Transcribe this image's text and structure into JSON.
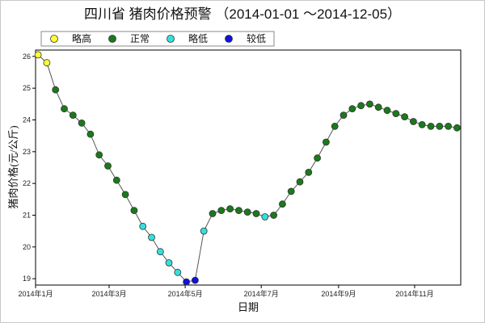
{
  "chart_data": {
    "type": "line",
    "title": "四川省 猪肉价格预警 （2014-01-01 ～2014-12-05）",
    "xlabel": "日期",
    "ylabel": "猪肉价格(元/公斤)",
    "ylim": [
      18.8,
      26.2
    ],
    "yticks": [
      19,
      20,
      21,
      22,
      23,
      24,
      25,
      26
    ],
    "xlim": [
      "2014-01-01",
      "2014-12-08"
    ],
    "xticks": [
      {
        "date": "2014-01-01",
        "label": "2014年1月"
      },
      {
        "date": "2014-03-01",
        "label": "2014年3月"
      },
      {
        "date": "2014-05-01",
        "label": "2014年5月"
      },
      {
        "date": "2014-07-01",
        "label": "2014年7月"
      },
      {
        "date": "2014-09-01",
        "label": "2014年9月"
      },
      {
        "date": "2014-11-01",
        "label": "2014年11月"
      }
    ],
    "grid": false,
    "legend_position": "top-left",
    "legend": [
      {
        "name": "略高",
        "color": "#ffff33"
      },
      {
        "name": "正常",
        "color": "#1a7a1a"
      },
      {
        "name": "略低",
        "color": "#33e0e0"
      },
      {
        "name": "较低",
        "color": "#1010e0"
      }
    ],
    "line_color": "#555555",
    "points": [
      {
        "x": "2014-01-03",
        "y": 26.05,
        "status": "略高"
      },
      {
        "x": "2014-01-10",
        "y": 25.8,
        "status": "略高"
      },
      {
        "x": "2014-01-17",
        "y": 24.95,
        "status": "正常"
      },
      {
        "x": "2014-01-24",
        "y": 24.35,
        "status": "正常"
      },
      {
        "x": "2014-01-31",
        "y": 24.15,
        "status": "正常"
      },
      {
        "x": "2014-02-07",
        "y": 23.9,
        "status": "正常"
      },
      {
        "x": "2014-02-14",
        "y": 23.55,
        "status": "正常"
      },
      {
        "x": "2014-02-21",
        "y": 22.9,
        "status": "正常"
      },
      {
        "x": "2014-02-28",
        "y": 22.55,
        "status": "正常"
      },
      {
        "x": "2014-03-07",
        "y": 22.1,
        "status": "正常"
      },
      {
        "x": "2014-03-14",
        "y": 21.65,
        "status": "正常"
      },
      {
        "x": "2014-03-21",
        "y": 21.15,
        "status": "正常"
      },
      {
        "x": "2014-03-28",
        "y": 20.65,
        "status": "略低"
      },
      {
        "x": "2014-04-04",
        "y": 20.3,
        "status": "略低"
      },
      {
        "x": "2014-04-11",
        "y": 19.85,
        "status": "略低"
      },
      {
        "x": "2014-04-18",
        "y": 19.5,
        "status": "略低"
      },
      {
        "x": "2014-04-25",
        "y": 19.2,
        "status": "略低"
      },
      {
        "x": "2014-05-02",
        "y": 18.9,
        "status": "较低"
      },
      {
        "x": "2014-05-09",
        "y": 18.95,
        "status": "较低"
      },
      {
        "x": "2014-05-16",
        "y": 20.5,
        "status": "略低"
      },
      {
        "x": "2014-05-23",
        "y": 21.05,
        "status": "正常"
      },
      {
        "x": "2014-05-30",
        "y": 21.15,
        "status": "正常"
      },
      {
        "x": "2014-06-06",
        "y": 21.2,
        "status": "正常"
      },
      {
        "x": "2014-06-13",
        "y": 21.15,
        "status": "正常"
      },
      {
        "x": "2014-06-20",
        "y": 21.1,
        "status": "正常"
      },
      {
        "x": "2014-06-27",
        "y": 21.05,
        "status": "正常"
      },
      {
        "x": "2014-07-04",
        "y": 20.95,
        "status": "略低"
      },
      {
        "x": "2014-07-11",
        "y": 21.0,
        "status": "正常"
      },
      {
        "x": "2014-07-18",
        "y": 21.35,
        "status": "正常"
      },
      {
        "x": "2014-07-25",
        "y": 21.75,
        "status": "正常"
      },
      {
        "x": "2014-08-01",
        "y": 22.05,
        "status": "正常"
      },
      {
        "x": "2014-08-08",
        "y": 22.35,
        "status": "正常"
      },
      {
        "x": "2014-08-15",
        "y": 22.8,
        "status": "正常"
      },
      {
        "x": "2014-08-22",
        "y": 23.3,
        "status": "正常"
      },
      {
        "x": "2014-08-29",
        "y": 23.8,
        "status": "正常"
      },
      {
        "x": "2014-09-05",
        "y": 24.15,
        "status": "正常"
      },
      {
        "x": "2014-09-12",
        "y": 24.35,
        "status": "正常"
      },
      {
        "x": "2014-09-19",
        "y": 24.45,
        "status": "正常"
      },
      {
        "x": "2014-09-26",
        "y": 24.5,
        "status": "正常"
      },
      {
        "x": "2014-10-03",
        "y": 24.4,
        "status": "正常"
      },
      {
        "x": "2014-10-10",
        "y": 24.3,
        "status": "正常"
      },
      {
        "x": "2014-10-17",
        "y": 24.2,
        "status": "正常"
      },
      {
        "x": "2014-10-24",
        "y": 24.1,
        "status": "正常"
      },
      {
        "x": "2014-10-31",
        "y": 23.95,
        "status": "正常"
      },
      {
        "x": "2014-11-07",
        "y": 23.85,
        "status": "正常"
      },
      {
        "x": "2014-11-14",
        "y": 23.8,
        "status": "正常"
      },
      {
        "x": "2014-11-21",
        "y": 23.8,
        "status": "正常"
      },
      {
        "x": "2014-11-28",
        "y": 23.8,
        "status": "正常"
      },
      {
        "x": "2014-12-05",
        "y": 23.75,
        "status": "正常"
      }
    ]
  }
}
